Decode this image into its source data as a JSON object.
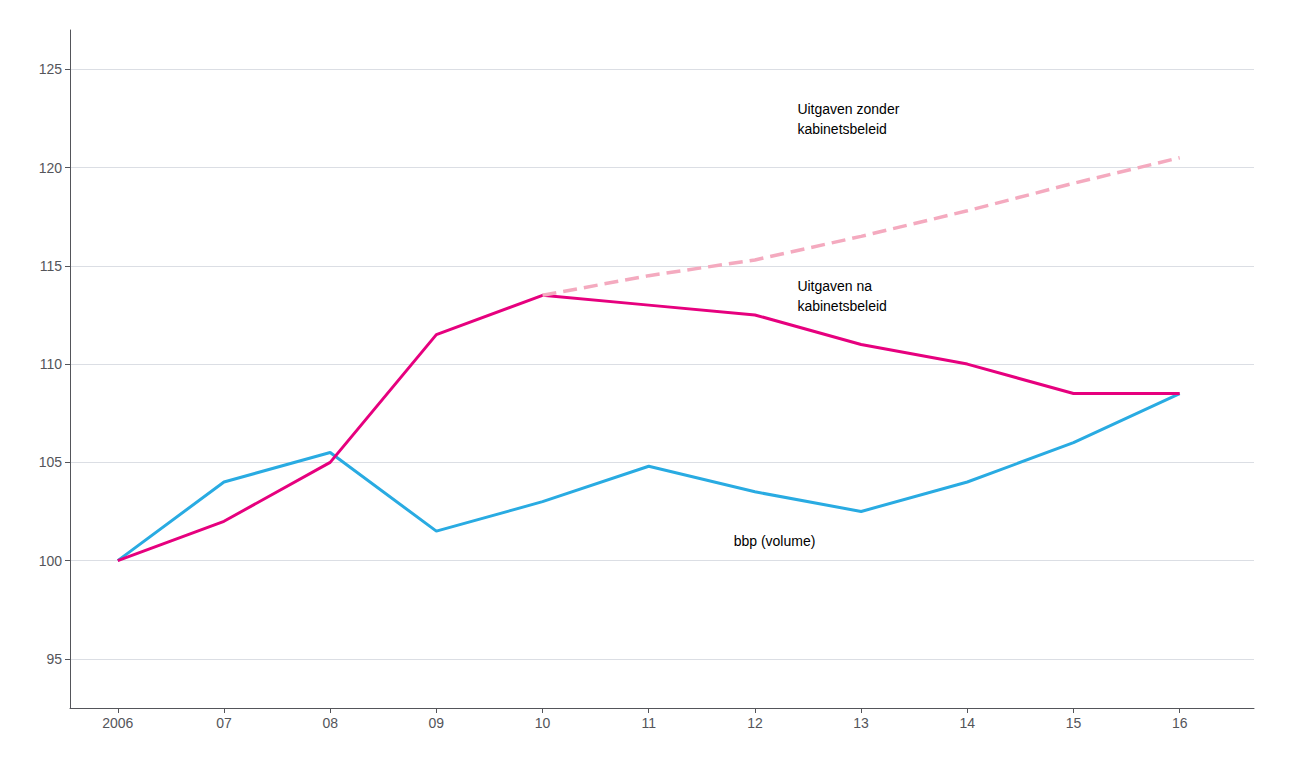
{
  "chart_data": {
    "type": "line",
    "x": [
      2006,
      2007,
      2008,
      2009,
      2010,
      2011,
      2012,
      2013,
      2014,
      2015,
      2016
    ],
    "series": [
      {
        "color": "#29ABE2",
        "line_style": "solid",
        "values": [
          100,
          104,
          105.5,
          101.5,
          103,
          104.8,
          103.5,
          102.5,
          104,
          106,
          108.5
        ]
      },
      {
        "color": "#E6007E",
        "line_style": "solid",
        "values": [
          100,
          102,
          105,
          111.5,
          113.5,
          113,
          112.5,
          111,
          110,
          108.5,
          108.5
        ]
      },
      {
        "color": "#F4AABF",
        "line_style": "dashed",
        "values": [
          null,
          null,
          null,
          null,
          113.5,
          114.5,
          115.3,
          116.5,
          117.8,
          119.2,
          120.5
        ]
      }
    ],
    "xlim": [
      2005.55,
      2016.7
    ],
    "xticks": [
      2006,
      {
        "value": 2007,
        "label": "07"
      },
      {
        "value": 2008,
        "label": "08"
      },
      {
        "value": 2009,
        "label": "09"
      },
      {
        "value": 2010,
        "label": "10"
      },
      {
        "value": 2011,
        "label": "11"
      },
      {
        "value": 2012,
        "label": "12"
      },
      {
        "value": 2013,
        "label": "13"
      },
      {
        "value": 2014,
        "label": "14"
      },
      {
        "value": 2015,
        "label": "15"
      },
      {
        "value": 2016,
        "label": "16"
      }
    ],
    "ylim": [
      92.5,
      127
    ],
    "yticks": [
      95,
      100,
      105,
      110,
      115,
      120,
      125
    ],
    "grid": true,
    "annotations": [
      {
        "text": "Uitgaven zonder\nkabinetsbeleid",
        "x": 2012.4,
        "y": 123.5
      },
      {
        "text": "Uitgaven na\nkabinetsbeleid",
        "x": 2012.4,
        "y": 114.5
      },
      {
        "text": "bbp (volume)",
        "x": 2011.8,
        "y": 101.5
      }
    ]
  }
}
